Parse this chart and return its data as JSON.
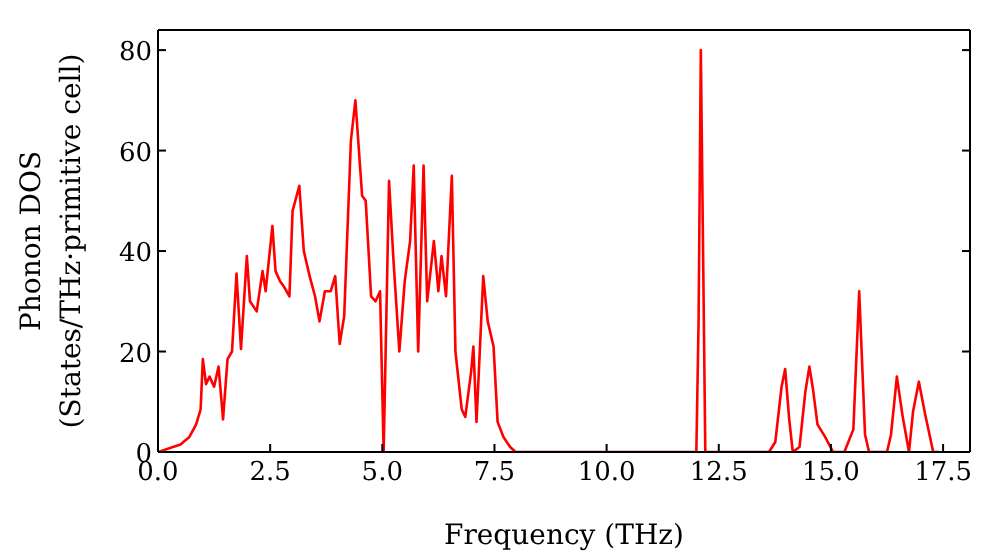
{
  "chart_data": {
    "type": "line",
    "xlabel": "Frequency (THz)",
    "ylabel": "Phonon DOS\n(States/THz·primitive cell)",
    "xlim": [
      0,
      18.1
    ],
    "ylim": [
      0,
      84
    ],
    "xticks": [
      {
        "value": 0,
        "label": "0.0"
      },
      {
        "value": 2.5,
        "label": "2.5"
      },
      {
        "value": 5,
        "label": "5.0"
      },
      {
        "value": 7.5,
        "label": "7.5"
      },
      {
        "value": 10,
        "label": "10.0"
      },
      {
        "value": 12.5,
        "label": "12.5"
      },
      {
        "value": 15,
        "label": "15.0"
      },
      {
        "value": 17.5,
        "label": "17.5"
      }
    ],
    "yticks": [
      0,
      20,
      40,
      60,
      80
    ],
    "marker": "none",
    "line_style": "solid",
    "series": [
      {
        "color": "#ff0000",
        "x": [
          0,
          0.5,
          0.7,
          0.85,
          0.95,
          1.0,
          1.07,
          1.15,
          1.25,
          1.35,
          1.45,
          1.55,
          1.65,
          1.75,
          1.85,
          1.98,
          2.05,
          2.2,
          2.33,
          2.4,
          2.55,
          2.62,
          2.72,
          2.8,
          2.93,
          3.0,
          3.15,
          3.25,
          3.38,
          3.5,
          3.6,
          3.72,
          3.85,
          3.95,
          4.05,
          4.15,
          4.3,
          4.4,
          4.55,
          4.63,
          4.75,
          4.85,
          4.95,
          5.03,
          5.15,
          5.25,
          5.38,
          5.5,
          5.62,
          5.7,
          5.8,
          5.92,
          6.0,
          6.15,
          6.25,
          6.32,
          6.42,
          6.55,
          6.63,
          6.77,
          6.85,
          6.98,
          7.03,
          7.1,
          7.25,
          7.35,
          7.48,
          7.57,
          7.7,
          7.85,
          7.97,
          12.0,
          12.05,
          12.1,
          12.2,
          13.62,
          13.76,
          13.9,
          13.98,
          14.07,
          14.15,
          14.3,
          14.43,
          14.52,
          14.6,
          14.7,
          14.87,
          15.05,
          15.3,
          15.5,
          15.63,
          15.76,
          15.85,
          16.25,
          16.34,
          16.47,
          16.6,
          16.74,
          16.83,
          16.96,
          17.1,
          17.28,
          17.4
        ],
        "values": [
          0,
          1.5,
          3,
          5.5,
          8.5,
          18.5,
          13.5,
          15,
          13,
          17,
          6.5,
          18.5,
          20,
          35.5,
          20.5,
          39,
          30,
          28,
          36,
          32,
          45,
          36,
          34,
          33,
          31,
          48,
          53,
          40,
          35,
          31,
          26,
          32,
          32,
          35,
          21.5,
          27,
          62,
          70,
          51,
          50,
          31,
          30,
          32,
          0,
          54,
          38,
          20,
          34,
          42,
          57,
          20,
          57,
          30,
          42,
          32,
          39,
          31,
          55,
          20,
          8.5,
          7,
          16,
          21,
          6,
          35,
          26,
          21,
          6,
          3,
          1,
          0,
          0,
          26,
          80,
          0,
          0,
          2,
          13,
          16.5,
          6.5,
          0,
          1,
          12,
          17,
          12.5,
          5.5,
          3,
          0,
          0,
          4.5,
          32,
          3.5,
          0,
          0,
          3.5,
          15,
          7,
          0,
          8,
          14,
          7.5,
          0,
          0
        ]
      }
    ]
  }
}
